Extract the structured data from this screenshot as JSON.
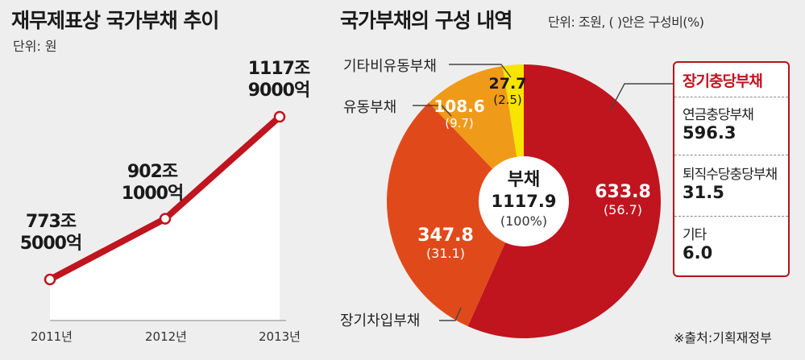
{
  "left": {
    "title": "재무제표상 국가부채 추이",
    "unit": "단위: 원"
  },
  "right": {
    "title": "국가부채의 구성 내역",
    "unit": "단위: 조원, ( )안은 구성비(%)"
  },
  "chart_data": [
    {
      "type": "line",
      "title": "재무제표상 국가부채 추이",
      "unit_label": "단위: 원",
      "categories": [
        "2011년",
        "2012년",
        "2013년"
      ],
      "values_trillion": [
        773.5,
        902.1,
        1117.9
      ],
      "labels": [
        {
          "line1": "773조",
          "line2": "5000억"
        },
        {
          "line1": "902조",
          "line2": "1000억"
        },
        {
          "line1": "1117조",
          "line2": "9000억"
        }
      ],
      "ylim": [
        700,
        1150
      ]
    },
    {
      "type": "pie",
      "title": "국가부채의 구성 내역",
      "unit_label": "단위: 조원, ( )안은 구성비(%)",
      "center": {
        "line1": "부채",
        "line2": "1117.9",
        "line3": "(100%)"
      },
      "slices": [
        {
          "name": "장기충당부채",
          "value": 633.8,
          "value_text": "633.8",
          "percent": 56.7,
          "percent_text": "(56.7)",
          "color": "#c0141f"
        },
        {
          "name": "장기차입부채",
          "value": 347.8,
          "value_text": "347.8",
          "percent": 31.1,
          "percent_text": "(31.1)",
          "color": "#e04a1b"
        },
        {
          "name": "유동부채",
          "value": 108.6,
          "value_text": "108.6",
          "percent": 9.7,
          "percent_text": "(9.7)",
          "color": "#f09a1a"
        },
        {
          "name": "기타비유동부채",
          "value": 27.7,
          "value_text": "27.7",
          "percent": 2.5,
          "percent_text": "(2.5)",
          "color": "#f7e400"
        }
      ],
      "breakdown": {
        "title": "장기충당부채",
        "items": [
          {
            "name": "연금충당부채",
            "value": "596.3"
          },
          {
            "name": "퇴직수당충당부채",
            "value": "31.5"
          },
          {
            "name": "기타",
            "value": "6.0"
          }
        ]
      }
    }
  ],
  "source": "※출처:기획재정부",
  "colors": {
    "line": "#c0141f",
    "area": "#ffffff",
    "accent": "#c0141f"
  }
}
